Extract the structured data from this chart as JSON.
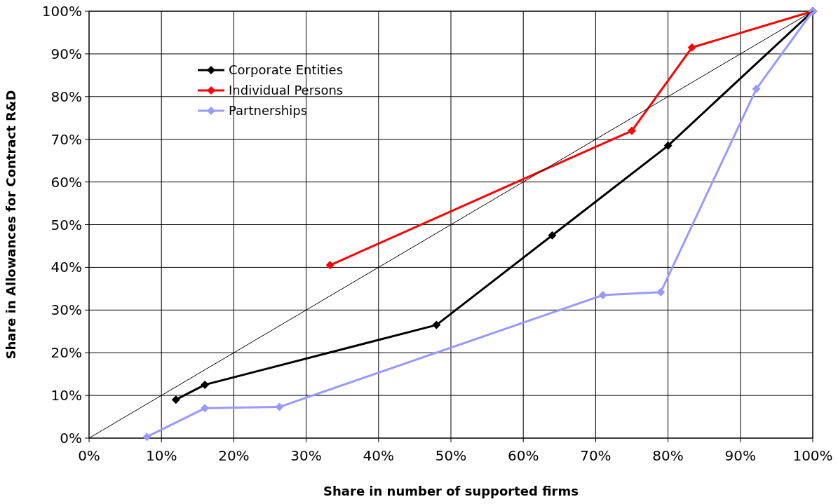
{
  "chart_data": {
    "type": "line",
    "xlabel": "Share in number of supported firms",
    "ylabel": "Share in Allowances for Contract R&D",
    "series": [
      {
        "name": "Corporate Entities",
        "color": "#000000",
        "x": [
          12,
          16,
          48,
          64,
          80,
          100
        ],
        "values": [
          9,
          12.5,
          26.5,
          47.5,
          68.5,
          100
        ]
      },
      {
        "name": "Individual Persons",
        "color": "#ff0000",
        "x": [
          33.3,
          75,
          83.3,
          100
        ],
        "values": [
          40.5,
          72,
          91.5,
          100
        ]
      },
      {
        "name": "Partnerships",
        "color": "#9999ff",
        "x": [
          8,
          16,
          26.3,
          71,
          79,
          92.2,
          100
        ],
        "values": [
          0.3,
          7,
          7.3,
          33.5,
          34.2,
          81.8,
          100
        ]
      },
      {
        "color": "#000000",
        "x": [
          0,
          100
        ],
        "values": [
          0,
          100
        ],
        "marker": "none"
      }
    ],
    "xlim": [
      0,
      100
    ],
    "ylim": [
      0,
      100
    ],
    "xticks": [
      {
        "value": 0,
        "label": "0%"
      },
      {
        "value": 10,
        "label": "10%"
      },
      {
        "value": 20,
        "label": "20%"
      },
      {
        "value": 30,
        "label": "30%"
      },
      {
        "value": 40,
        "label": "40%"
      },
      {
        "value": 50,
        "label": "50%"
      },
      {
        "value": 60,
        "label": "60%"
      },
      {
        "value": 70,
        "label": "70%"
      },
      {
        "value": 80,
        "label": "80%"
      },
      {
        "value": 90,
        "label": "90%"
      },
      {
        "value": 100,
        "label": "100%"
      }
    ],
    "yticks": [
      {
        "value": 0,
        "label": "0%"
      },
      {
        "value": 10,
        "label": "10%"
      },
      {
        "value": 20,
        "label": "20%"
      },
      {
        "value": 30,
        "label": "30%"
      },
      {
        "value": 40,
        "label": "40%"
      },
      {
        "value": 50,
        "label": "50%"
      },
      {
        "value": 60,
        "label": "60%"
      },
      {
        "value": 70,
        "label": "70%"
      },
      {
        "value": 80,
        "label": "80%"
      },
      {
        "value": 90,
        "label": "90%"
      },
      {
        "value": 100,
        "label": "100%"
      }
    ],
    "grid": true,
    "legend": "top left",
    "marker": "diamond"
  }
}
